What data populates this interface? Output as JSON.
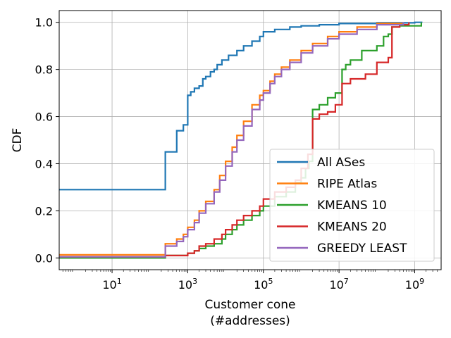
{
  "chart_data": {
    "type": "line",
    "step": true,
    "xscale": "log",
    "xlabel_line1": "Customer cone",
    "xlabel_line2": "(#addresses)",
    "ylabel": "CDF",
    "xlim": [
      0.4,
      5000000000
    ],
    "ylim": [
      -0.05,
      1.05
    ],
    "x_ticks": [
      {
        "value": 10,
        "base": "10",
        "exp": "1"
      },
      {
        "value": 1000,
        "base": "10",
        "exp": "3"
      },
      {
        "value": 100000,
        "base": "10",
        "exp": "5"
      },
      {
        "value": 10000000,
        "base": "10",
        "exp": "7"
      },
      {
        "value": 1000000000,
        "base": "10",
        "exp": "9"
      }
    ],
    "y_ticks": [
      "0.0",
      "0.2",
      "0.4",
      "0.6",
      "0.8",
      "1.0"
    ],
    "grid": true,
    "legend_position": "lower right",
    "series": [
      {
        "name": "All ASes",
        "color": "#1f77b4",
        "points": [
          [
            0.4,
            0.29
          ],
          [
            256,
            0.29
          ],
          [
            256,
            0.45
          ],
          [
            512,
            0.45
          ],
          [
            512,
            0.54
          ],
          [
            768,
            0.54
          ],
          [
            768,
            0.565
          ],
          [
            1000,
            0.565
          ],
          [
            1000,
            0.69
          ],
          [
            1200,
            0.69
          ],
          [
            1200,
            0.705
          ],
          [
            1500,
            0.705
          ],
          [
            1500,
            0.72
          ],
          [
            2000,
            0.72
          ],
          [
            2000,
            0.73
          ],
          [
            2500,
            0.73
          ],
          [
            2500,
            0.76
          ],
          [
            3000,
            0.77
          ],
          [
            4000,
            0.79
          ],
          [
            5000,
            0.8
          ],
          [
            6000,
            0.82
          ],
          [
            8000,
            0.84
          ],
          [
            12000,
            0.86
          ],
          [
            20000,
            0.88
          ],
          [
            30000,
            0.9
          ],
          [
            50000,
            0.92
          ],
          [
            80000,
            0.94
          ],
          [
            100000,
            0.96
          ],
          [
            200000,
            0.97
          ],
          [
            500000,
            0.98
          ],
          [
            1000000,
            0.985
          ],
          [
            3000000,
            0.99
          ],
          [
            10000000,
            0.995
          ],
          [
            100000000,
            0.998
          ],
          [
            1000000000,
            1.0
          ],
          [
            1600000000,
            1.0
          ]
        ]
      },
      {
        "name": "RIPE Atlas",
        "color": "#ff7f0e",
        "points": [
          [
            0.4,
            0.013
          ],
          [
            256,
            0.013
          ],
          [
            256,
            0.06
          ],
          [
            512,
            0.06
          ],
          [
            512,
            0.08
          ],
          [
            768,
            0.08
          ],
          [
            768,
            0.1
          ],
          [
            1000,
            0.1
          ],
          [
            1000,
            0.13
          ],
          [
            1500,
            0.13
          ],
          [
            1500,
            0.16
          ],
          [
            2000,
            0.2
          ],
          [
            3000,
            0.24
          ],
          [
            5000,
            0.29
          ],
          [
            7000,
            0.35
          ],
          [
            10000,
            0.41
          ],
          [
            15000,
            0.47
          ],
          [
            20000,
            0.52
          ],
          [
            30000,
            0.58
          ],
          [
            50000,
            0.65
          ],
          [
            80000,
            0.69
          ],
          [
            100000,
            0.71
          ],
          [
            150000,
            0.75
          ],
          [
            200000,
            0.78
          ],
          [
            300000,
            0.81
          ],
          [
            500000,
            0.84
          ],
          [
            1000000,
            0.88
          ],
          [
            2000000,
            0.91
          ],
          [
            5000000,
            0.94
          ],
          [
            10000000,
            0.96
          ],
          [
            30000000,
            0.98
          ],
          [
            100000000,
            0.995
          ],
          [
            500000000,
            1.0
          ]
        ]
      },
      {
        "name": "KMEANS 10",
        "color": "#2ca02c",
        "points": [
          [
            0.4,
            0.0
          ],
          [
            256,
            0.0
          ],
          [
            256,
            0.01
          ],
          [
            600,
            0.01
          ],
          [
            1000,
            0.02
          ],
          [
            1500,
            0.03
          ],
          [
            2000,
            0.04
          ],
          [
            3000,
            0.05
          ],
          [
            5000,
            0.06
          ],
          [
            8000,
            0.08
          ],
          [
            10000,
            0.1
          ],
          [
            15000,
            0.12
          ],
          [
            20000,
            0.14
          ],
          [
            30000,
            0.16
          ],
          [
            50000,
            0.18
          ],
          [
            80000,
            0.2
          ],
          [
            100000,
            0.22
          ],
          [
            200000,
            0.26
          ],
          [
            400000,
            0.28
          ],
          [
            700000,
            0.32
          ],
          [
            1000000,
            0.34
          ],
          [
            1300000,
            0.38
          ],
          [
            1600000,
            0.41
          ],
          [
            2000000,
            0.5
          ],
          [
            2000000,
            0.63
          ],
          [
            3000000,
            0.65
          ],
          [
            5000000,
            0.68
          ],
          [
            8000000,
            0.7
          ],
          [
            12000000,
            0.71
          ],
          [
            12000000,
            0.8
          ],
          [
            15000000,
            0.82
          ],
          [
            20000000,
            0.84
          ],
          [
            40000000,
            0.88
          ],
          [
            100000000,
            0.9
          ],
          [
            150000000,
            0.94
          ],
          [
            200000000,
            0.95
          ],
          [
            250000000,
            0.96
          ],
          [
            250000000,
            0.98
          ],
          [
            400000000,
            0.985
          ],
          [
            1500000000,
            1.0
          ]
        ]
      },
      {
        "name": "KMEANS 20",
        "color": "#d62728",
        "points": [
          [
            0.4,
            0.005
          ],
          [
            256,
            0.005
          ],
          [
            256,
            0.01
          ],
          [
            600,
            0.01
          ],
          [
            1000,
            0.02
          ],
          [
            1500,
            0.03
          ],
          [
            2000,
            0.05
          ],
          [
            3000,
            0.06
          ],
          [
            5000,
            0.08
          ],
          [
            8000,
            0.1
          ],
          [
            10000,
            0.12
          ],
          [
            15000,
            0.14
          ],
          [
            20000,
            0.16
          ],
          [
            30000,
            0.18
          ],
          [
            50000,
            0.2
          ],
          [
            80000,
            0.22
          ],
          [
            100000,
            0.25
          ],
          [
            200000,
            0.28
          ],
          [
            400000,
            0.3
          ],
          [
            700000,
            0.33
          ],
          [
            1000000,
            0.38
          ],
          [
            1500000,
            0.44
          ],
          [
            2000000,
            0.46
          ],
          [
            2000000,
            0.59
          ],
          [
            3000000,
            0.61
          ],
          [
            5000000,
            0.62
          ],
          [
            8000000,
            0.65
          ],
          [
            12000000,
            0.67
          ],
          [
            12000000,
            0.74
          ],
          [
            20000000,
            0.76
          ],
          [
            50000000,
            0.78
          ],
          [
            100000000,
            0.8
          ],
          [
            100000000,
            0.83
          ],
          [
            200000000,
            0.85
          ],
          [
            250000000,
            0.87
          ],
          [
            250000000,
            0.98
          ],
          [
            400000000,
            0.99
          ],
          [
            700000000,
            1.0
          ]
        ]
      },
      {
        "name": "GREEDY LEAST",
        "color": "#9467bd",
        "points": [
          [
            0.4,
            0.005
          ],
          [
            256,
            0.005
          ],
          [
            256,
            0.05
          ],
          [
            512,
            0.05
          ],
          [
            512,
            0.07
          ],
          [
            768,
            0.07
          ],
          [
            768,
            0.09
          ],
          [
            1000,
            0.09
          ],
          [
            1000,
            0.12
          ],
          [
            1500,
            0.12
          ],
          [
            1500,
            0.15
          ],
          [
            2000,
            0.19
          ],
          [
            3000,
            0.23
          ],
          [
            5000,
            0.28
          ],
          [
            7000,
            0.33
          ],
          [
            10000,
            0.39
          ],
          [
            15000,
            0.45
          ],
          [
            20000,
            0.5
          ],
          [
            30000,
            0.56
          ],
          [
            50000,
            0.63
          ],
          [
            80000,
            0.67
          ],
          [
            100000,
            0.7
          ],
          [
            150000,
            0.74
          ],
          [
            200000,
            0.77
          ],
          [
            300000,
            0.8
          ],
          [
            500000,
            0.83
          ],
          [
            1000000,
            0.87
          ],
          [
            2000000,
            0.9
          ],
          [
            5000000,
            0.93
          ],
          [
            10000000,
            0.95
          ],
          [
            30000000,
            0.97
          ],
          [
            100000000,
            0.99
          ],
          [
            500000000,
            1.0
          ]
        ]
      }
    ]
  }
}
